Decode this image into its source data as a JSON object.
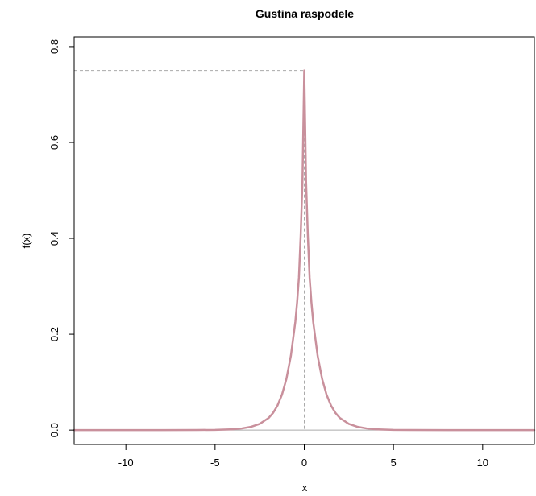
{
  "chart_data": {
    "type": "line",
    "title": "Gustina raspodele",
    "xlabel": "x",
    "ylabel": "f(x)",
    "xlim": [
      -12.9,
      12.9
    ],
    "ylim": [
      -0.03,
      0.82
    ],
    "x_ticks": [
      -10,
      -5,
      0,
      5,
      10
    ],
    "x_tick_labels": [
      "-10",
      "-5",
      "0",
      "5",
      "10"
    ],
    "y_ticks": [
      0.0,
      0.2,
      0.4,
      0.6,
      0.8
    ],
    "y_tick_labels": [
      "0.0",
      "0.2",
      "0.4",
      "0.6",
      "0.8"
    ],
    "series": [
      {
        "color": "#c9909c",
        "x": [
          -12.9,
          -10,
          -8,
          -6,
          -5,
          -4,
          -3.5,
          -3,
          -2.5,
          -2,
          -1.75,
          -1.5,
          -1.25,
          -1,
          -0.75,
          -0.5,
          -0.4,
          -0.3,
          -0.2,
          -0.1,
          0,
          0.1,
          0.2,
          0.3,
          0.4,
          0.5,
          0.75,
          1,
          1.25,
          1.5,
          1.75,
          2,
          2.5,
          3,
          3.5,
          4,
          5,
          6,
          8,
          10,
          12.9
        ],
        "y": [
          0.0,
          0.0,
          0.0,
          0.0002,
          0.0005,
          0.0017,
          0.0035,
          0.0067,
          0.013,
          0.0252,
          0.0358,
          0.0512,
          0.0738,
          0.107,
          0.155,
          0.226,
          0.267,
          0.318,
          0.406,
          0.52,
          0.75,
          0.52,
          0.406,
          0.318,
          0.267,
          0.226,
          0.155,
          0.107,
          0.0738,
          0.0512,
          0.0358,
          0.0252,
          0.013,
          0.0067,
          0.0035,
          0.0017,
          0.0005,
          0.0002,
          0.0,
          0.0,
          0.0
        ]
      }
    ],
    "reference_lines": {
      "color": "#aaaaaa",
      "vertical_x": 0,
      "horizontal_y": 0.75,
      "baseline_y": 0
    },
    "grid": false,
    "legend": "none"
  }
}
